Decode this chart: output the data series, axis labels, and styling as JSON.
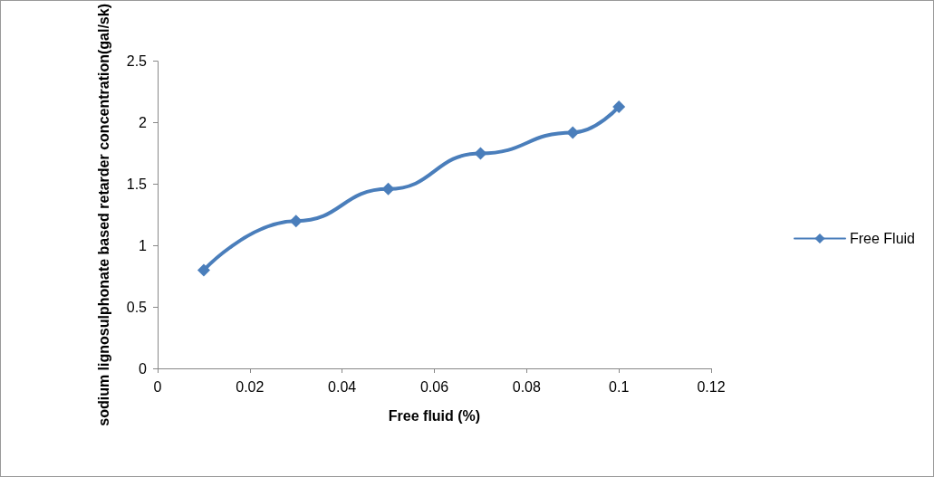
{
  "chart_data": {
    "type": "line",
    "xlabel": "Free fluid (%)",
    "ylabel": "sodium lignosulphonate based retarder concentration(gal/sk)",
    "x": [
      0.01,
      0.03,
      0.05,
      0.07,
      0.09,
      0.1
    ],
    "series": [
      {
        "name": "Free Fluid",
        "color": "#4a7ebb",
        "values": [
          0.8,
          1.2,
          1.46,
          1.75,
          1.92,
          2.13
        ]
      }
    ],
    "xlim": [
      0,
      0.12
    ],
    "xticks": [
      0,
      0.02,
      0.04,
      0.06,
      0.08,
      0.1,
      0.12
    ],
    "ylim": [
      0,
      2.5
    ],
    "yticks": [
      0,
      0.5,
      1,
      1.5,
      2,
      2.5
    ],
    "grid": false,
    "legend": "right",
    "marker": "diamond",
    "line_style": "solid"
  }
}
